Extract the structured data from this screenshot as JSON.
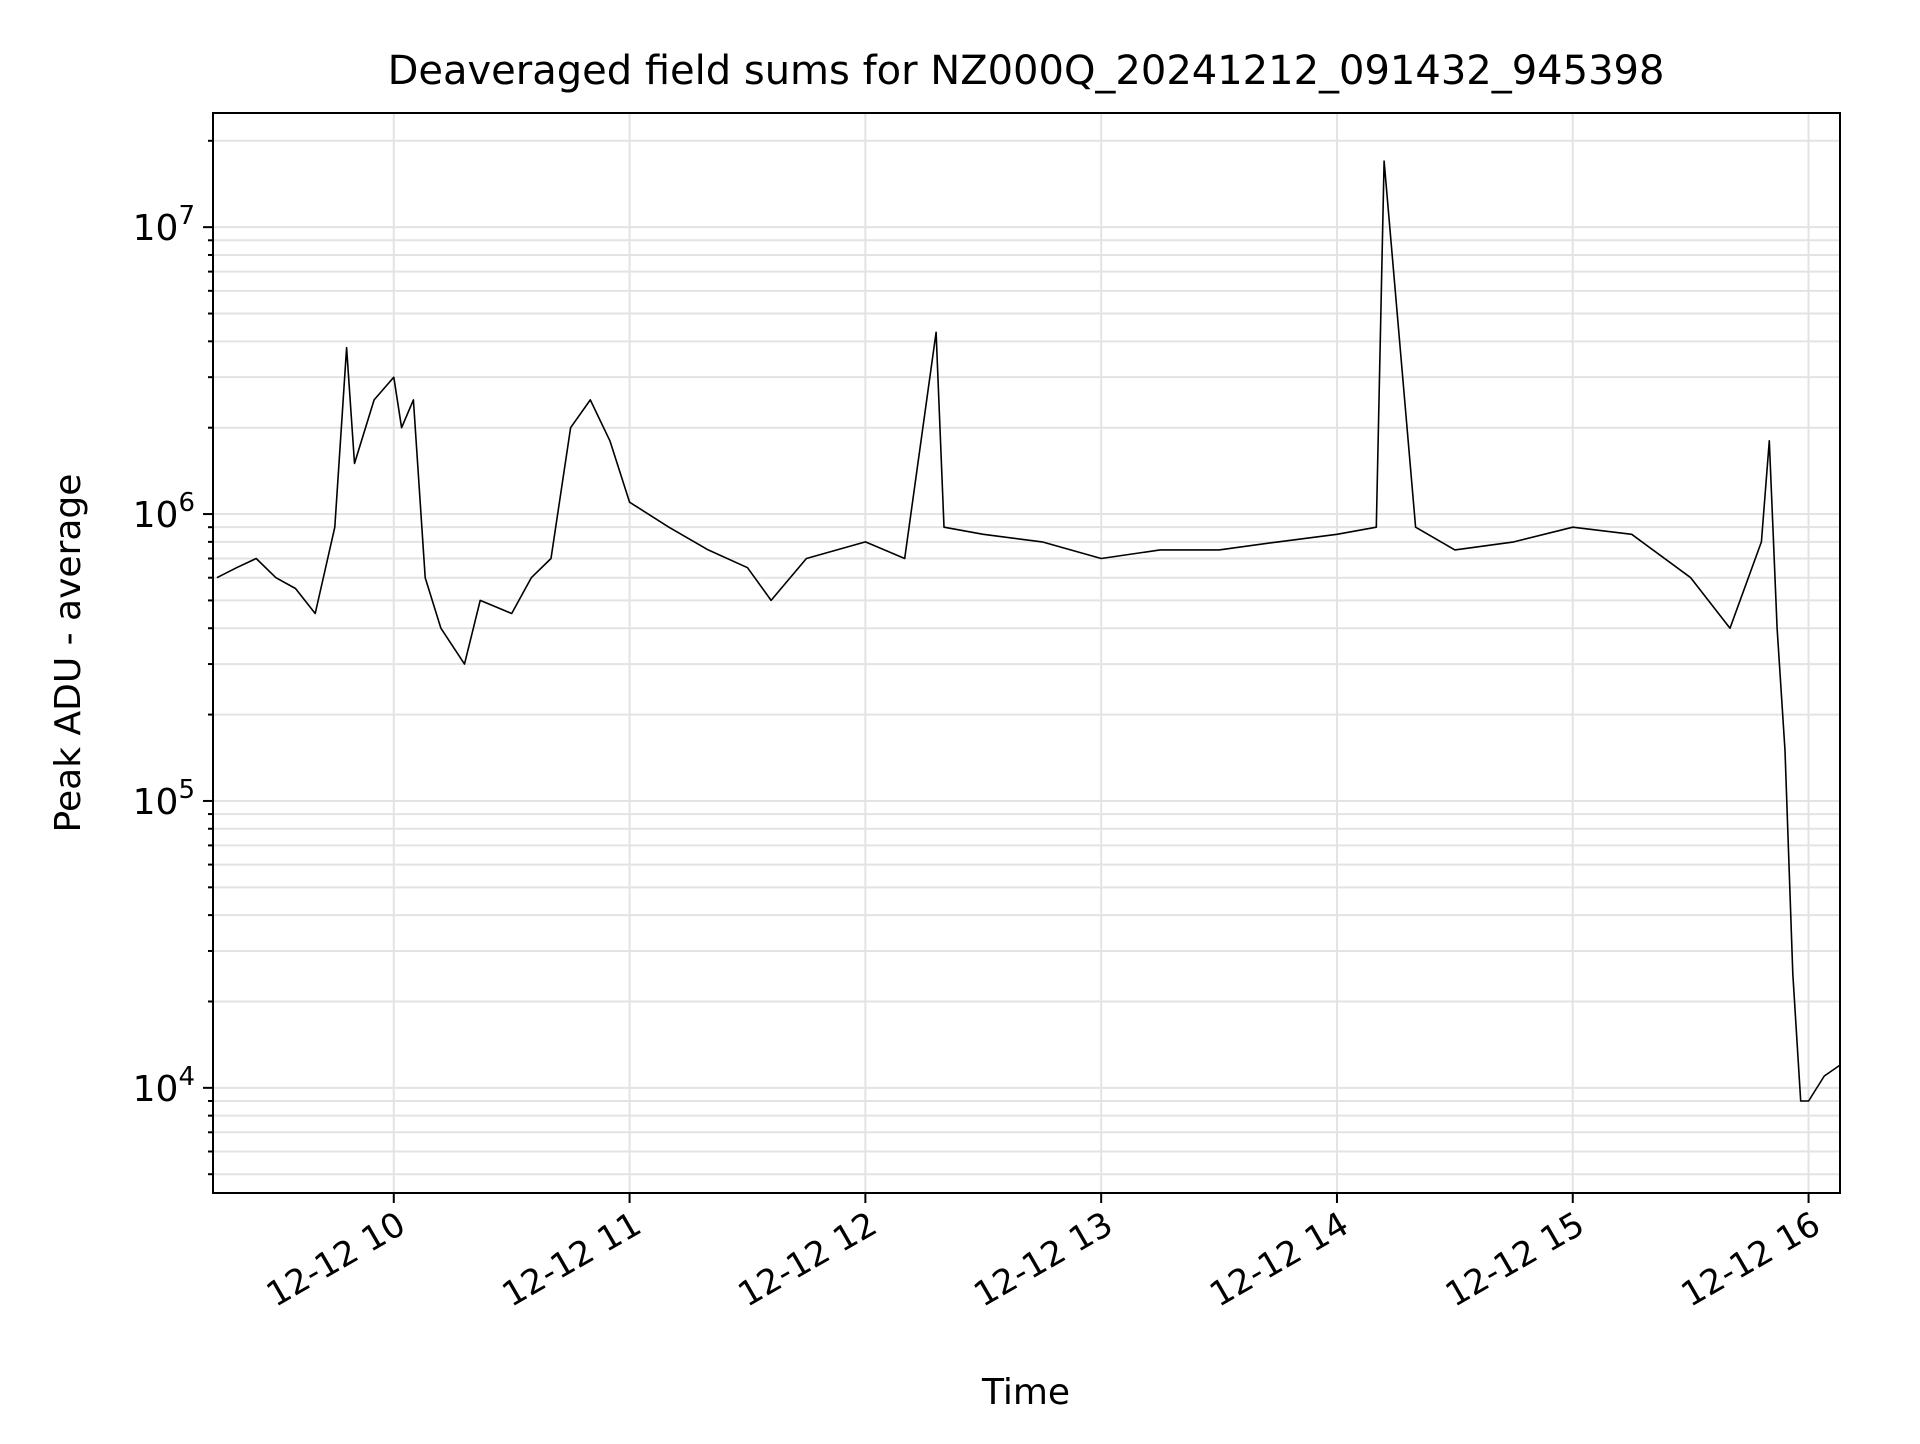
{
  "chart_data": {
    "type": "line",
    "title": "Deaveraged field sums for NZ000Q_20241212_091432_945398",
    "xlabel": "Time",
    "ylabel": "Peak ADU - average",
    "x_tick_labels": [
      "12-12 10",
      "12-12 11",
      "12-12 12",
      "12-12 13",
      "12-12 14",
      "12-12 15",
      "12-12 16"
    ],
    "x_ticks": [
      "2024-12-12 10:00",
      "2024-12-12 11:00",
      "2024-12-12 12:00",
      "2024-12-12 13:00",
      "2024-12-12 14:00",
      "2024-12-12 15:00",
      "2024-12-12 16:00"
    ],
    "xlim": [
      "2024-12-12 09:14",
      "2024-12-12 16:08"
    ],
    "y_scale": "log",
    "y_ticks": [
      10000,
      100000,
      1000000,
      10000000
    ],
    "ylim": [
      4300,
      25000000
    ],
    "grid": true,
    "line_color": "#000000",
    "grid_color": "#e3e3e3",
    "series": [
      {
        "x": [
          "2024-12-12 09:15",
          "2024-12-12 09:20",
          "2024-12-12 09:25",
          "2024-12-12 09:30",
          "2024-12-12 09:35",
          "2024-12-12 09:40",
          "2024-12-12 09:45",
          "2024-12-12 09:48",
          "2024-12-12 09:50",
          "2024-12-12 09:55",
          "2024-12-12 10:00",
          "2024-12-12 10:02",
          "2024-12-12 10:05",
          "2024-12-12 10:08",
          "2024-12-12 10:12",
          "2024-12-12 10:18",
          "2024-12-12 10:22",
          "2024-12-12 10:30",
          "2024-12-12 10:35",
          "2024-12-12 10:40",
          "2024-12-12 10:45",
          "2024-12-12 10:50",
          "2024-12-12 10:55",
          "2024-12-12 11:00",
          "2024-12-12 11:10",
          "2024-12-12 11:20",
          "2024-12-12 11:30",
          "2024-12-12 11:36",
          "2024-12-12 11:45",
          "2024-12-12 12:00",
          "2024-12-12 12:10",
          "2024-12-12 12:18",
          "2024-12-12 12:20",
          "2024-12-12 12:30",
          "2024-12-12 12:45",
          "2024-12-12 13:00",
          "2024-12-12 13:15",
          "2024-12-12 13:30",
          "2024-12-12 13:45",
          "2024-12-12 14:00",
          "2024-12-12 14:10",
          "2024-12-12 14:12",
          "2024-12-12 14:20",
          "2024-12-12 14:30",
          "2024-12-12 14:45",
          "2024-12-12 15:00",
          "2024-12-12 15:15",
          "2024-12-12 15:30",
          "2024-12-12 15:40",
          "2024-12-12 15:48",
          "2024-12-12 15:50",
          "2024-12-12 15:52",
          "2024-12-12 15:54",
          "2024-12-12 15:56",
          "2024-12-12 15:58",
          "2024-12-12 16:00",
          "2024-12-12 16:04",
          "2024-12-12 16:08"
        ],
        "y": [
          600000,
          650000,
          700000,
          600000,
          550000,
          450000,
          900000,
          3800000,
          1500000,
          2500000,
          3000000,
          2000000,
          2500000,
          600000,
          400000,
          300000,
          500000,
          450000,
          600000,
          700000,
          2000000,
          2500000,
          1800000,
          1100000,
          900000,
          750000,
          650000,
          500000,
          700000,
          800000,
          700000,
          4300000,
          900000,
          850000,
          800000,
          700000,
          750000,
          750000,
          800000,
          850000,
          900000,
          17000000,
          900000,
          750000,
          800000,
          900000,
          850000,
          600000,
          400000,
          800000,
          1800000,
          400000,
          150000,
          25000,
          9000,
          9000,
          11000,
          12000
        ]
      }
    ]
  }
}
